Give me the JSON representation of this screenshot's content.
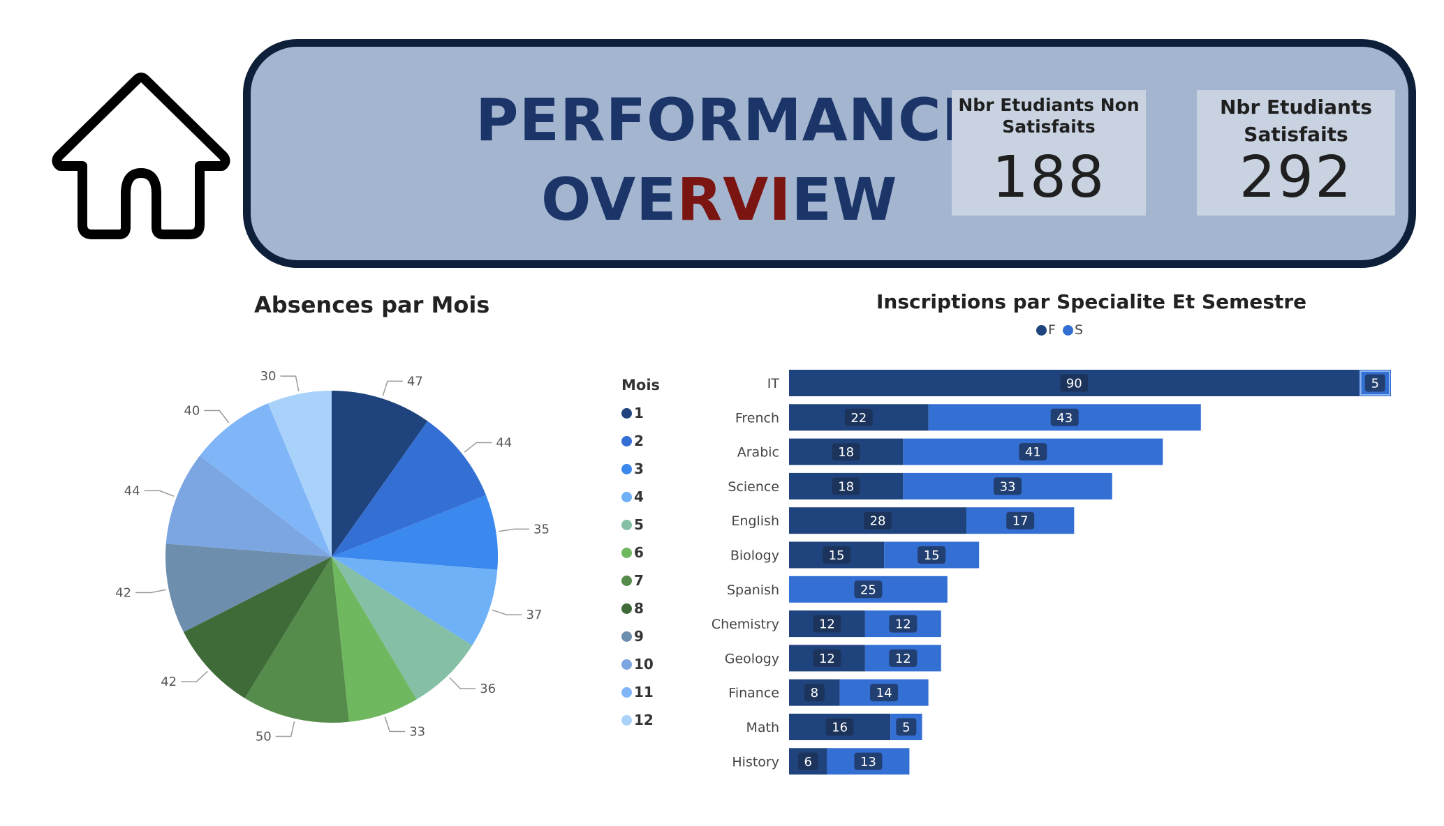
{
  "header": {
    "title_line1": "PERFORMANCE",
    "title_line2_a": "OVE",
    "title_line2_b": "RVI",
    "title_line2_c": "EW",
    "accent_color": "#7a1512",
    "title_color": "#1c3569"
  },
  "kpis": {
    "non_satisfaits": {
      "label": "Nbr Etudiants Non Satisfaits",
      "value": "188"
    },
    "satisfaits": {
      "label": "Nbr Etudiants Satisfaits",
      "value": "292"
    }
  },
  "icons": {
    "home": "home-icon"
  },
  "chart_data": [
    {
      "type": "pie",
      "title": "Absences par Mois",
      "legend_title": "Mois",
      "legend_position": "right",
      "categories": [
        "1",
        "2",
        "3",
        "4",
        "5",
        "6",
        "7",
        "8",
        "9",
        "10",
        "11",
        "12"
      ],
      "values": [
        47,
        44,
        35,
        37,
        36,
        33,
        50,
        42,
        42,
        44,
        40,
        30
      ],
      "colors": [
        "#1f447d",
        "#346fd4",
        "#3b88ee",
        "#6fb1f7",
        "#84bfa6",
        "#6fb85f",
        "#558c4b",
        "#3e6b38",
        "#6d8ead",
        "#7ba6e2",
        "#80b5f7",
        "#a9d2fb"
      ]
    },
    {
      "type": "bar",
      "orientation": "horizontal",
      "stacked": true,
      "title": "Inscriptions par Specialite Et Semestre",
      "legend_position": "top-center",
      "categories": [
        "IT",
        "French",
        "Arabic",
        "Science",
        "English",
        "Biology",
        "Spanish",
        "Chemistry",
        "Geology",
        "Finance",
        "Math",
        "History"
      ],
      "series": [
        {
          "name": "F",
          "color": "#1f447d",
          "values": [
            90,
            22,
            18,
            18,
            28,
            15,
            0,
            12,
            12,
            8,
            16,
            6
          ]
        },
        {
          "name": "S",
          "color": "#346fd4",
          "values": [
            5,
            43,
            41,
            33,
            17,
            15,
            25,
            12,
            12,
            14,
            5,
            13
          ]
        }
      ],
      "xlim": [
        0,
        95
      ],
      "grid": false
    }
  ]
}
